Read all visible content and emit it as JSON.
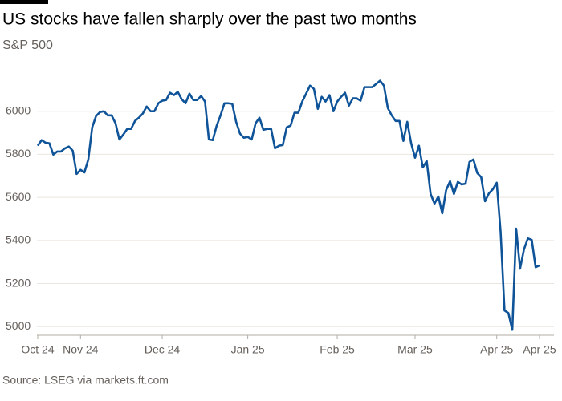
{
  "chart_data": {
    "type": "line",
    "title": "US stocks have fallen sharply over the past two months",
    "subtitle": "S&P 500",
    "source": "Source: LSEG via markets.ft.com",
    "color": "#0f5499",
    "grid": true,
    "ylim": [
      4960,
      6200
    ],
    "yticks": [
      5000,
      5200,
      5400,
      5600,
      5800,
      6000
    ],
    "categories": [
      "Oct 24",
      null,
      null,
      null,
      null,
      null,
      null,
      null,
      null,
      null,
      null,
      "Nov 24",
      null,
      null,
      null,
      null,
      null,
      null,
      null,
      null,
      null,
      null,
      null,
      null,
      null,
      null,
      null,
      null,
      null,
      null,
      null,
      null,
      "Dec 24",
      null,
      null,
      null,
      null,
      null,
      null,
      null,
      null,
      null,
      null,
      null,
      null,
      null,
      null,
      null,
      null,
      null,
      null,
      null,
      null,
      null,
      "Jan 25",
      null,
      null,
      null,
      null,
      null,
      null,
      null,
      null,
      null,
      null,
      null,
      null,
      null,
      null,
      null,
      null,
      null,
      null,
      null,
      null,
      null,
      null,
      "Feb 25",
      null,
      null,
      null,
      null,
      null,
      null,
      null,
      null,
      null,
      null,
      null,
      null,
      null,
      null,
      null,
      null,
      null,
      null,
      null,
      "Mar 25",
      null,
      null,
      null,
      null,
      null,
      null,
      null,
      null,
      null,
      null,
      null,
      null,
      null,
      null,
      null,
      null,
      null,
      null,
      null,
      null,
      "Apr 25",
      null,
      null,
      null,
      null,
      null,
      null,
      null,
      null,
      null,
      null,
      "Apr 25"
    ],
    "values": [
      5840,
      5866,
      5854,
      5851,
      5799,
      5813,
      5813,
      5828,
      5836,
      5817,
      5709,
      5728,
      5716,
      5776,
      5925,
      5978,
      5996,
      6000,
      5981,
      5981,
      5944,
      5869,
      5892,
      5918,
      5918,
      5955,
      5970,
      5989,
      6022,
      6000,
      6000,
      6037,
      6049,
      6052,
      6086,
      6075,
      6090,
      6056,
      6037,
      6082,
      6052,
      6052,
      6071,
      6045,
      5869,
      5866,
      5933,
      5981,
      6037,
      6037,
      6034,
      5951,
      5896,
      5877,
      5881,
      5869,
      5944,
      5970,
      5914,
      5918,
      5918,
      5828,
      5840,
      5843,
      5925,
      5933,
      5993,
      5993,
      6045,
      6082,
      6119,
      6104,
      6011,
      6067,
      6045,
      6075,
      6000,
      6045,
      6067,
      6086,
      6026,
      6060,
      6060,
      6049,
      6112,
      6112,
      6112,
      6127,
      6142,
      6119,
      6015,
      5981,
      5955,
      5955,
      5862,
      5951,
      5851,
      5784,
      5840,
      5739,
      5769,
      5616,
      5571,
      5604,
      5526,
      5634,
      5675,
      5616,
      5672,
      5660,
      5664,
      5765,
      5776,
      5713,
      5694,
      5582,
      5619,
      5638,
      5668,
      5440,
      5075,
      5063,
      4985,
      5455,
      5269,
      5358,
      5410,
      5403,
      5276,
      5284
    ]
  }
}
